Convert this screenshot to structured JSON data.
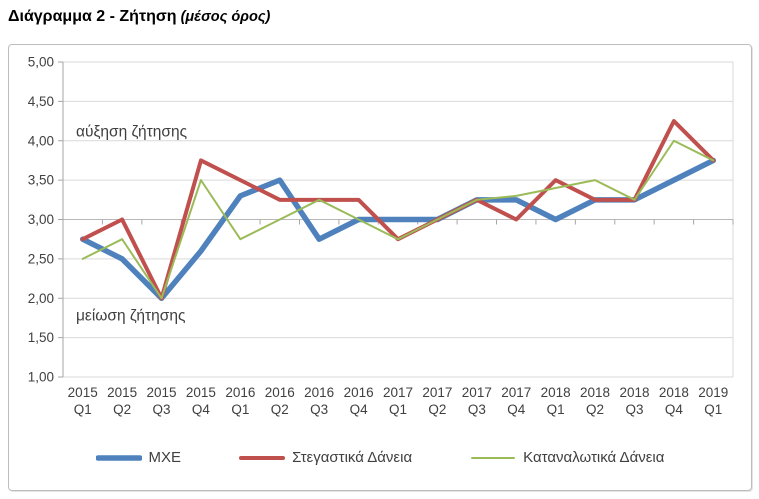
{
  "page_title": {
    "main": "Διάγραμμα 2 - Ζήτηση",
    "sub": "(μέσος όρος)"
  },
  "chart_data": {
    "type": "line",
    "categories": [
      "2015 Q1",
      "2015 Q2",
      "2015 Q3",
      "2015 Q4",
      "2016 Q1",
      "2016 Q2",
      "2016 Q3",
      "2016 Q4",
      "2017 Q1",
      "2017 Q2",
      "2017 Q3",
      "2017 Q4",
      "2018 Q1",
      "2018 Q2",
      "2018 Q3",
      "2018 Q4",
      "2019 Q1"
    ],
    "series": [
      {
        "name": "ΜΧΕ",
        "color": "#4F81BD",
        "width": 5.5,
        "values": [
          2.75,
          2.5,
          2.0,
          2.6,
          3.3,
          3.5,
          2.75,
          3.0,
          3.0,
          3.0,
          3.25,
          3.25,
          3.0,
          3.25,
          3.25,
          3.5,
          3.75
        ]
      },
      {
        "name": "Στεγαστικά Δάνεια",
        "color": "#C0504D",
        "width": 4,
        "values": [
          2.75,
          3.0,
          2.0,
          3.75,
          3.5,
          3.25,
          3.25,
          3.25,
          2.75,
          3.0,
          3.25,
          3.0,
          3.5,
          3.25,
          3.25,
          4.25,
          3.75
        ]
      },
      {
        "name": "Καταναλωτικά Δάνεια",
        "color": "#9BBB59",
        "width": 2,
        "values": [
          2.5,
          2.75,
          2.0,
          3.5,
          2.75,
          3.0,
          3.25,
          3.0,
          2.75,
          3.0,
          3.25,
          3.3,
          3.4,
          3.5,
          3.25,
          4.0,
          3.75
        ]
      }
    ],
    "ylim": [
      1,
      5
    ],
    "ytick_step": 0.5,
    "ytick_labels": [
      "5,00",
      "4,50",
      "4,00",
      "3,50",
      "3,00",
      "2,50",
      "2,00",
      "1,50",
      "1,00"
    ],
    "axis_cross_value": 3,
    "grid": true,
    "legend_position": "bottom",
    "annotations": [
      {
        "text": "αύξηση ζήτησης",
        "value": 4.12
      },
      {
        "text": "μείωση ζήτησης",
        "value": 1.78
      }
    ],
    "grid_color": "#D9D9D9",
    "axis_color": "#A6A6A6",
    "label_color": "#404040"
  }
}
